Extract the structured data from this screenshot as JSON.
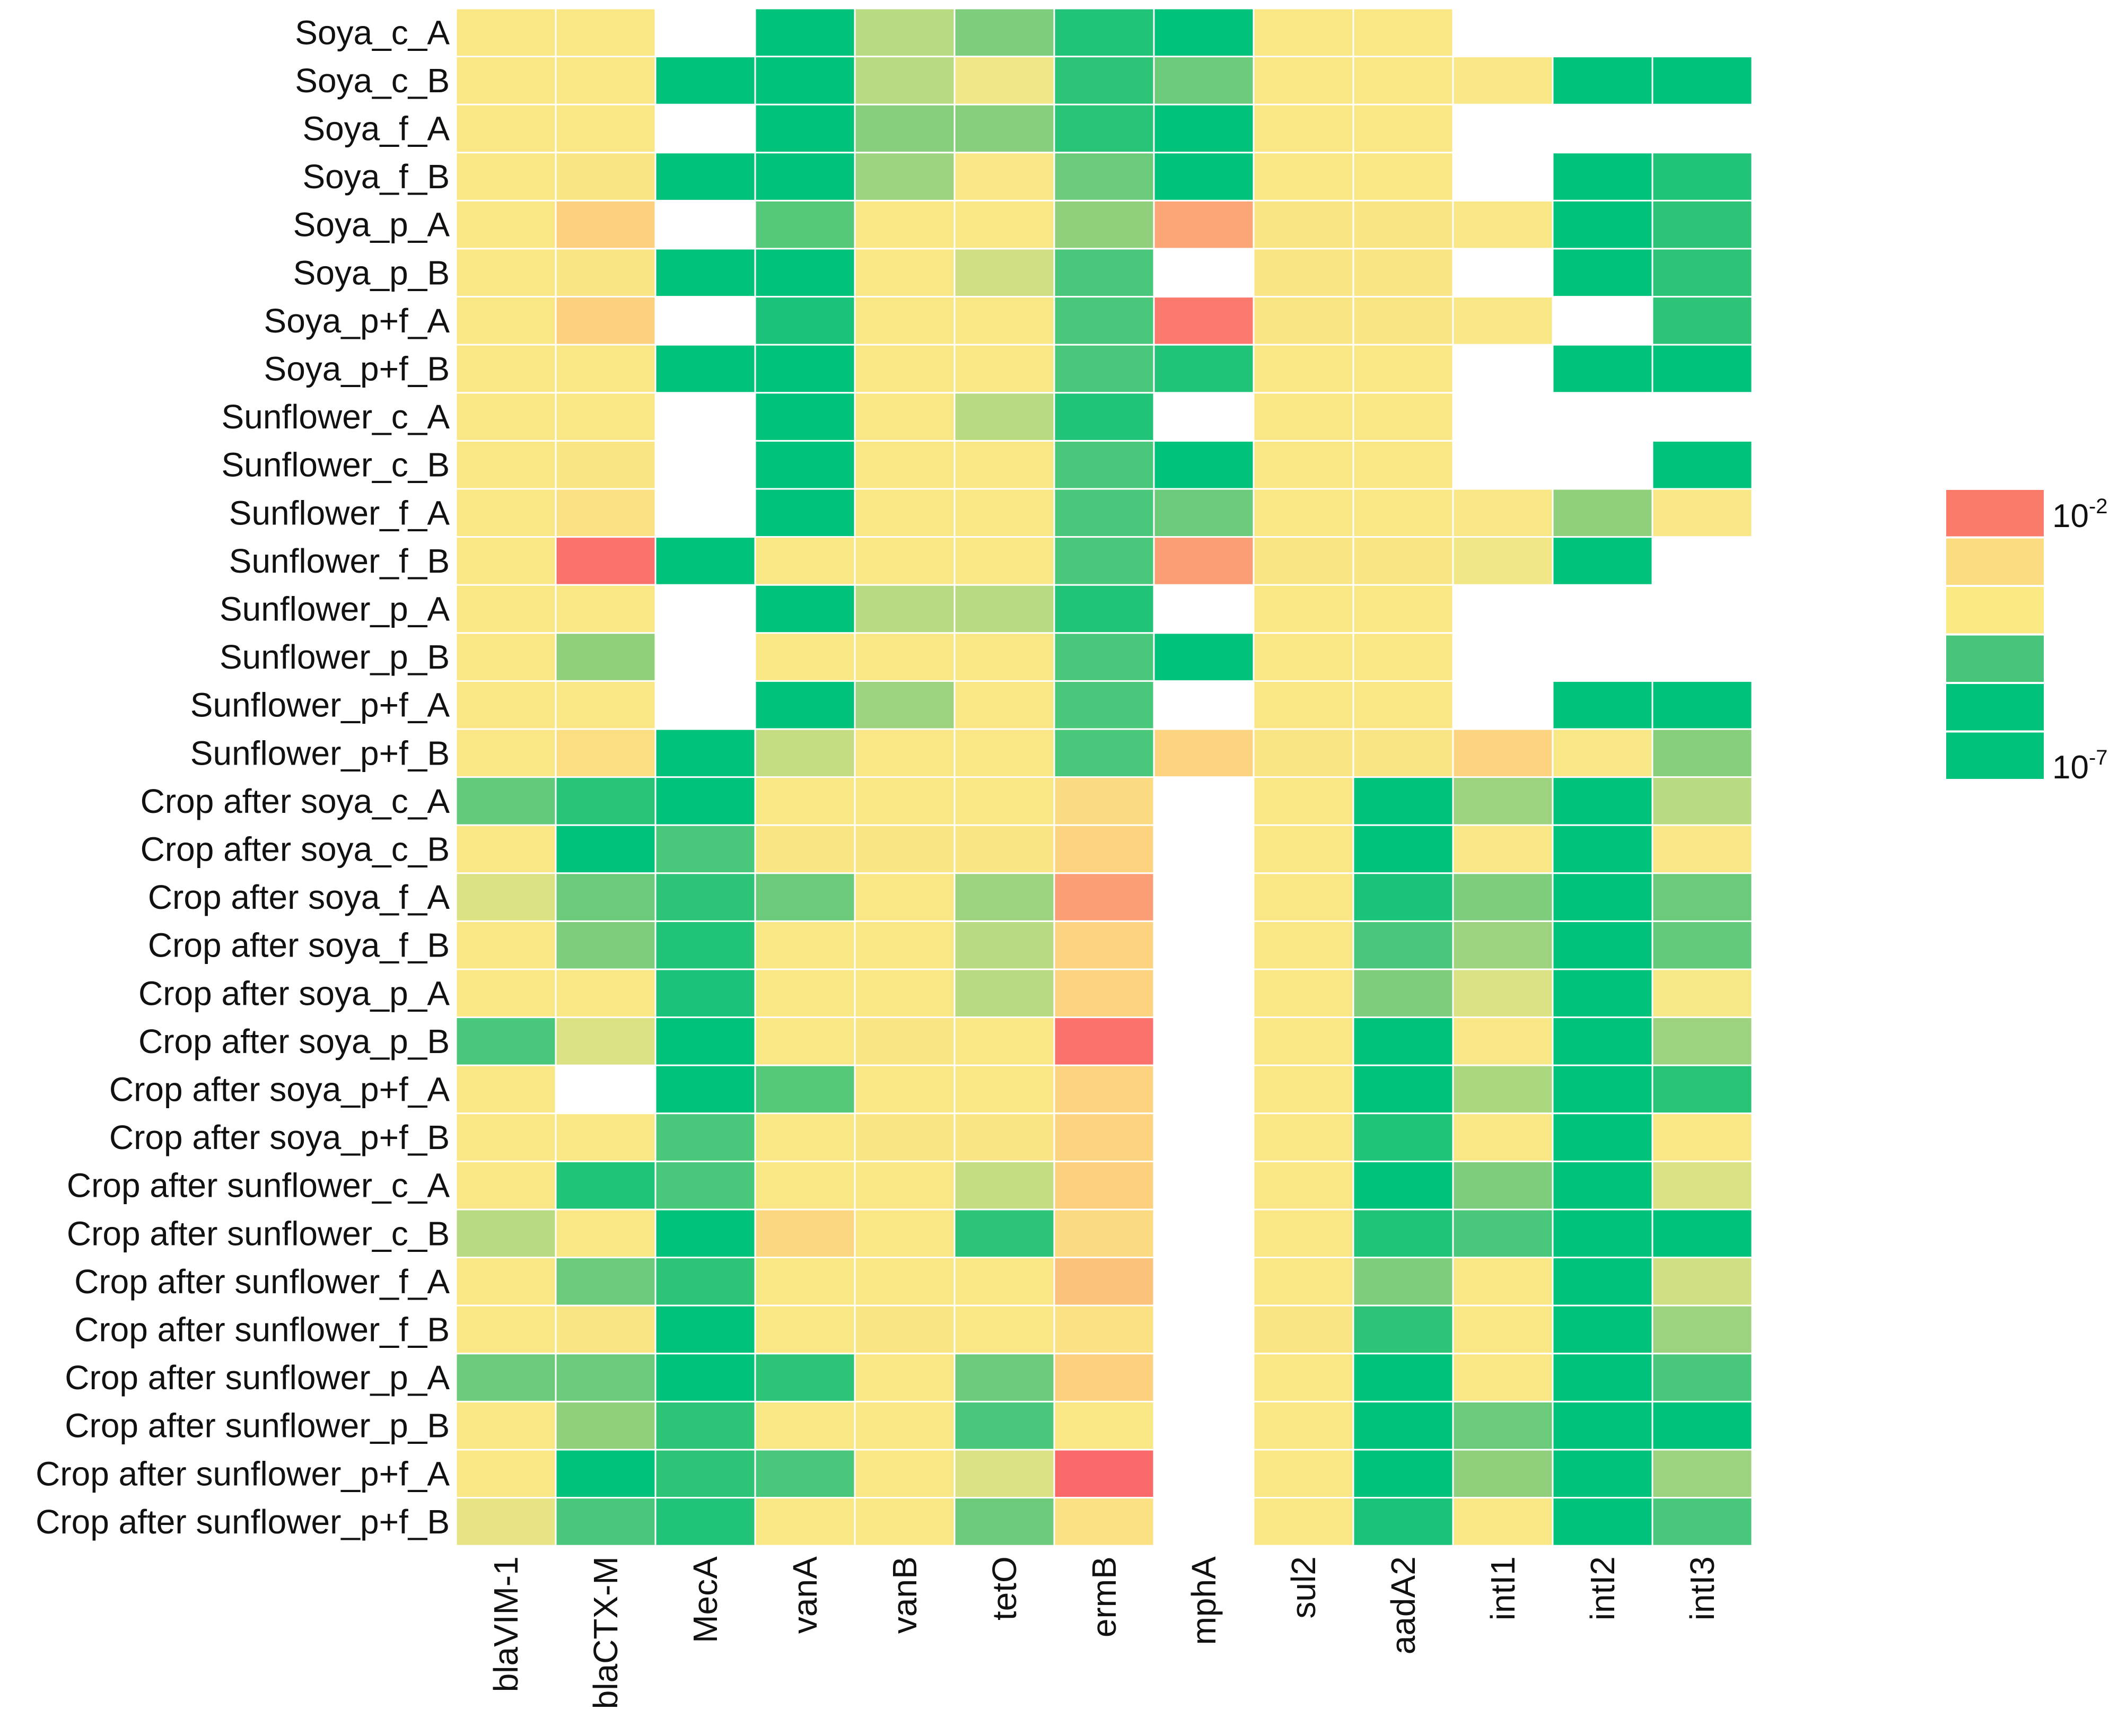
{
  "chart_data": {
    "type": "heatmap",
    "title": "",
    "rows": [
      "Soya_c_A",
      "Soya_c_B",
      "Soya_f_A",
      "Soya_f_B",
      "Soya_p_A",
      "Soya_p_B",
      "Soya_p+f_A",
      "Soya_p+f_B",
      "Sunflower_c_A",
      "Sunflower_c_B",
      "Sunflower_f_A",
      "Sunflower_f_B",
      "Sunflower_p_A",
      "Sunflower_p_B",
      "Sunflower_p+f_A",
      "Sunflower_p+f_B",
      "Crop after soya_c_A",
      "Crop after soya_c_B",
      "Crop after soya_f_A",
      "Crop after soya_f_B",
      "Crop after soya_p_A",
      "Crop after soya_p_B",
      "Crop after soya_p+f_A",
      "Crop after soya_p+f_B",
      "Crop after sunflower_c_A",
      "Crop after sunflower_c_B",
      "Crop after sunflower_f_A",
      "Crop after sunflower_f_B",
      "Crop after sunflower_p_A",
      "Crop after sunflower_p_B",
      "Crop after sunflower_p+f_A",
      "Crop after sunflower_p+f_B"
    ],
    "columns": [
      "blaVIM-1",
      "blaCTX-M",
      "MecA",
      "vanA",
      "vanB",
      "tetO",
      "ermB",
      "mphA",
      "sul2",
      "aadA2",
      "intI1",
      "intI2",
      "intI3"
    ],
    "colorbar": {
      "log10_min": -7,
      "log10_max": -2,
      "top_label_base": "10",
      "top_label_exp": "-2",
      "bottom_label_base": "10",
      "bottom_label_exp": "-7",
      "swatches": [
        "#fb7b6b",
        "#fcdc80",
        "#fbea84",
        "#45c47a",
        "#00c27a",
        "#00c27a"
      ]
    },
    "color_scale": {
      "stops_log10": [
        -7,
        -6.3,
        -5.9,
        -5.4,
        -5,
        -4.55,
        -4.1,
        -3.5,
        -2.8,
        -2.1
      ],
      "stops_color": [
        "#00c27a",
        "#2ec478",
        "#63c97b",
        "#90d07c",
        "#c5dd82",
        "#f7e887",
        "#fbe484",
        "#fcd07f",
        "#fc9e75",
        "#fb6a6a"
      ]
    },
    "values_log10": [
      [
        -4.3,
        -4.3,
        null,
        -7,
        -5.1,
        -5.6,
        -6.5,
        -7,
        -4.3,
        -4.3,
        null,
        null,
        null
      ],
      [
        -4.3,
        -4.3,
        -7,
        -7,
        -5.1,
        -4.6,
        -6.3,
        -5.8,
        -4.3,
        -4.3,
        -4.4,
        -7,
        -7
      ],
      [
        -4.3,
        -4.3,
        null,
        -7,
        -5.5,
        -5.5,
        -6.4,
        -7,
        -4.3,
        -4.3,
        null,
        null,
        null
      ],
      [
        -4.3,
        -4.2,
        -7,
        -7,
        -5.3,
        -4.4,
        -5.8,
        -7,
        -4.3,
        -4.3,
        null,
        -7,
        -6.5
      ],
      [
        -4.3,
        -3.5,
        null,
        -6,
        -4.3,
        -4.3,
        -5.4,
        -2.9,
        -4.2,
        -4.2,
        -4.4,
        -7,
        -6.3
      ],
      [
        -4.3,
        -4.2,
        -7,
        -7,
        -4.3,
        -4.9,
        -6.1,
        null,
        -4.2,
        -4.2,
        null,
        -7,
        -6.3
      ],
      [
        -4.3,
        -3.5,
        null,
        -6.6,
        -4.3,
        -4.3,
        -6.1,
        -2.3,
        -4.2,
        -4.2,
        -4.4,
        null,
        -6.3
      ],
      [
        -4.3,
        -4.3,
        -7,
        -7,
        -4.3,
        -4.3,
        -6.1,
        -6.5,
        -4.3,
        -4.3,
        null,
        -7,
        -7
      ],
      [
        -4.3,
        -4.3,
        null,
        -7,
        -4.3,
        -5.1,
        -6.5,
        null,
        -4.3,
        -4.3,
        null,
        null,
        null
      ],
      [
        -4.3,
        -4.2,
        null,
        -7,
        -4.3,
        -4.3,
        -6.1,
        -7,
        -4.3,
        -4.3,
        null,
        null,
        -7
      ],
      [
        -4.3,
        -4,
        null,
        -7,
        -4.3,
        -4.3,
        -6.1,
        -5.8,
        -4.3,
        -4.3,
        -4.4,
        -5.4,
        -4.4
      ],
      [
        -4.3,
        -2.2,
        -7,
        -4.3,
        -4.3,
        -4.3,
        -6.1,
        -2.8,
        -4.2,
        -4.2,
        -4.6,
        -7,
        null
      ],
      [
        -4.3,
        -4.3,
        null,
        -7,
        -5.1,
        -5.1,
        -6.5,
        null,
        -4.3,
        -4.3,
        null,
        null,
        null
      ],
      [
        -4.3,
        -5.4,
        null,
        -4.3,
        -4.3,
        -4.3,
        -6.1,
        -7,
        -4.3,
        -4.3,
        null,
        null,
        null
      ],
      [
        -4.3,
        -4.3,
        null,
        -7,
        -5.3,
        -4.3,
        -6.1,
        null,
        -4.3,
        -4.3,
        null,
        -7,
        -7
      ],
      [
        -4.3,
        -3.9,
        -7,
        -5,
        -4.3,
        -4.3,
        -6.1,
        -3.6,
        -4.2,
        -4.2,
        -3.6,
        -4.4,
        -5.5
      ],
      [
        -5.9,
        -6.4,
        -7,
        -4.3,
        -4.3,
        -4.3,
        -3.8,
        null,
        -4.3,
        -7,
        -5.3,
        -7,
        -5.1
      ],
      [
        -4.3,
        -7,
        -6.1,
        -4.2,
        -4.2,
        -4.2,
        -3.6,
        null,
        -4.3,
        -7,
        -4.4,
        -7,
        -4.4
      ],
      [
        -4.8,
        -5.8,
        -6.3,
        -5.8,
        -4.3,
        -5.3,
        -2.8,
        null,
        -4.3,
        -6.6,
        -5.6,
        -7,
        -5.8
      ],
      [
        -4.3,
        -5.6,
        -6.5,
        -4.3,
        -4.3,
        -5.1,
        -3.6,
        null,
        -4.3,
        -6.1,
        -5.3,
        -7,
        -5.9
      ],
      [
        -4.3,
        -4.3,
        -6.6,
        -4.3,
        -4.3,
        -5.1,
        -3.6,
        null,
        -4.3,
        -5.6,
        -4.8,
        -7,
        -4.5
      ],
      [
        -6.1,
        -4.8,
        -7,
        -4.3,
        -4.2,
        -4.3,
        -2.2,
        null,
        -4.3,
        -7,
        -4.4,
        -7,
        -5.3
      ],
      [
        -4.3,
        null,
        -7,
        -6,
        -4.3,
        -4.3,
        -3.6,
        null,
        -4.3,
        -7,
        -5.2,
        -7,
        -6.4
      ],
      [
        -4.3,
        -4.3,
        -6.1,
        -4.3,
        -4.2,
        -4.2,
        -3.6,
        null,
        -4.3,
        -6.5,
        -4.3,
        -7,
        -4.3
      ],
      [
        -4.3,
        -6.5,
        -6.1,
        -4.3,
        -4.3,
        -5,
        -3.5,
        null,
        -4.3,
        -7,
        -5.6,
        -7,
        -4.8
      ],
      [
        -5.1,
        -4.3,
        -7,
        -3.7,
        -4.3,
        -6.3,
        -3.8,
        null,
        -4.3,
        -6.5,
        -6.1,
        -7,
        -7
      ],
      [
        -4.3,
        -5.8,
        -6.3,
        -4.3,
        -4.3,
        -4.3,
        -3.3,
        null,
        -4.3,
        -5.6,
        -4.3,
        -7,
        -4.9
      ],
      [
        -4.3,
        -4.2,
        -7,
        -4.3,
        -4.2,
        -4.3,
        -4,
        null,
        -4.2,
        -6.3,
        -4.3,
        -7,
        -5.3
      ],
      [
        -5.8,
        -5.8,
        -7,
        -6.3,
        -4.3,
        -5.8,
        -3.5,
        null,
        -4.3,
        -7,
        -4.3,
        -7,
        -6.1
      ],
      [
        -4.3,
        -5.4,
        -6.3,
        -4.3,
        -4.3,
        -6.1,
        -4.3,
        null,
        -4.3,
        -7,
        -5.8,
        -7,
        -7
      ],
      [
        -4.3,
        -7,
        -6.3,
        -6.1,
        -4.3,
        -4.8,
        -2.1,
        null,
        -4.3,
        -7,
        -5.4,
        -7,
        -5.3
      ],
      [
        -4.7,
        -6.1,
        -6.5,
        -4.3,
        -4.3,
        -5.8,
        -4,
        null,
        -4.3,
        -6.6,
        -4.3,
        -7,
        -6.1
      ]
    ]
  }
}
